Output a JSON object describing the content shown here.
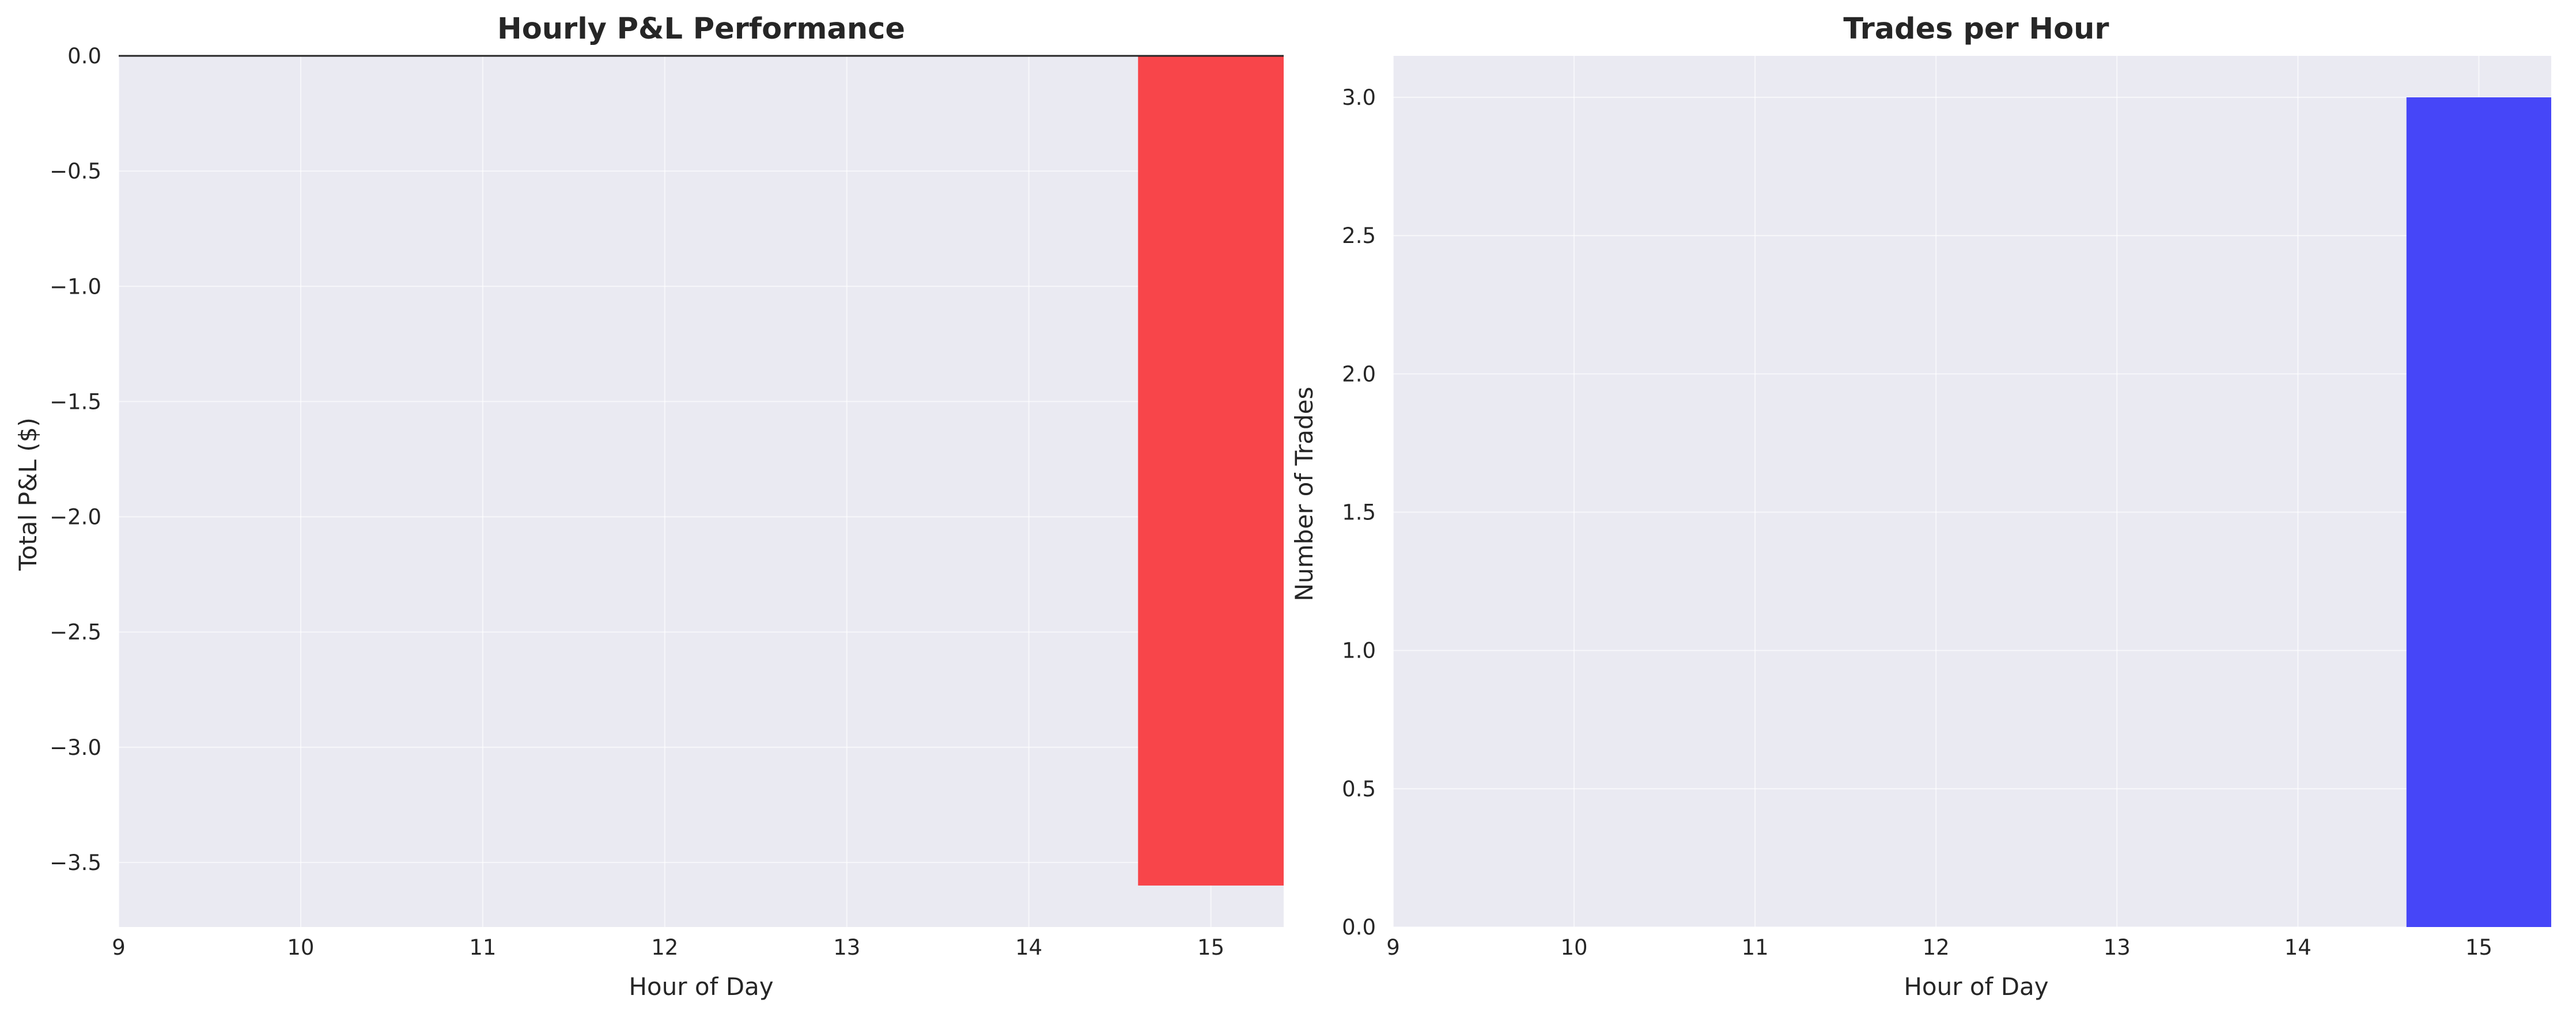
{
  "colors": {
    "plot_background": "#eaeaf2",
    "grid": "#ffffff",
    "pnl_bar": "#f8454a",
    "trades_bar": "#4646f8",
    "zero_line": "#262626",
    "text": "#262626"
  },
  "chart_data": [
    {
      "type": "bar",
      "title": "Hourly P&L Performance",
      "xlabel": "Hour of Day",
      "ylabel": "Total P&L ($)",
      "x": [
        15
      ],
      "values": [
        -3.6
      ],
      "bar_width": 0.8,
      "xlim": [
        9,
        15.4
      ],
      "ylim": [
        -3.78,
        0
      ],
      "xticks": [
        9,
        10,
        11,
        12,
        13,
        14,
        15
      ],
      "yticks": [
        0.0,
        -0.5,
        -1.0,
        -1.5,
        -2.0,
        -2.5,
        -3.0,
        -3.5
      ],
      "xtick_labels": [
        "9",
        "10",
        "11",
        "12",
        "13",
        "14",
        "15"
      ],
      "ytick_labels": [
        "0.0",
        "−0.5",
        "−1.0",
        "−1.5",
        "−2.0",
        "−2.5",
        "−3.0",
        "−3.5"
      ],
      "zero_line": true,
      "grid": true
    },
    {
      "type": "bar",
      "title": "Trades per Hour",
      "xlabel": "Hour of Day",
      "ylabel": "Number of Trades",
      "x": [
        15
      ],
      "values": [
        3
      ],
      "bar_width": 0.8,
      "xlim": [
        9,
        15.4
      ],
      "ylim": [
        0,
        3.15
      ],
      "xticks": [
        9,
        10,
        11,
        12,
        13,
        14,
        15
      ],
      "yticks": [
        0.0,
        0.5,
        1.0,
        1.5,
        2.0,
        2.5,
        3.0
      ],
      "xtick_labels": [
        "9",
        "10",
        "11",
        "12",
        "13",
        "14",
        "15"
      ],
      "ytick_labels": [
        "0.0",
        "0.5",
        "1.0",
        "1.5",
        "2.0",
        "2.5",
        "3.0"
      ],
      "zero_line": false,
      "grid": true
    }
  ]
}
